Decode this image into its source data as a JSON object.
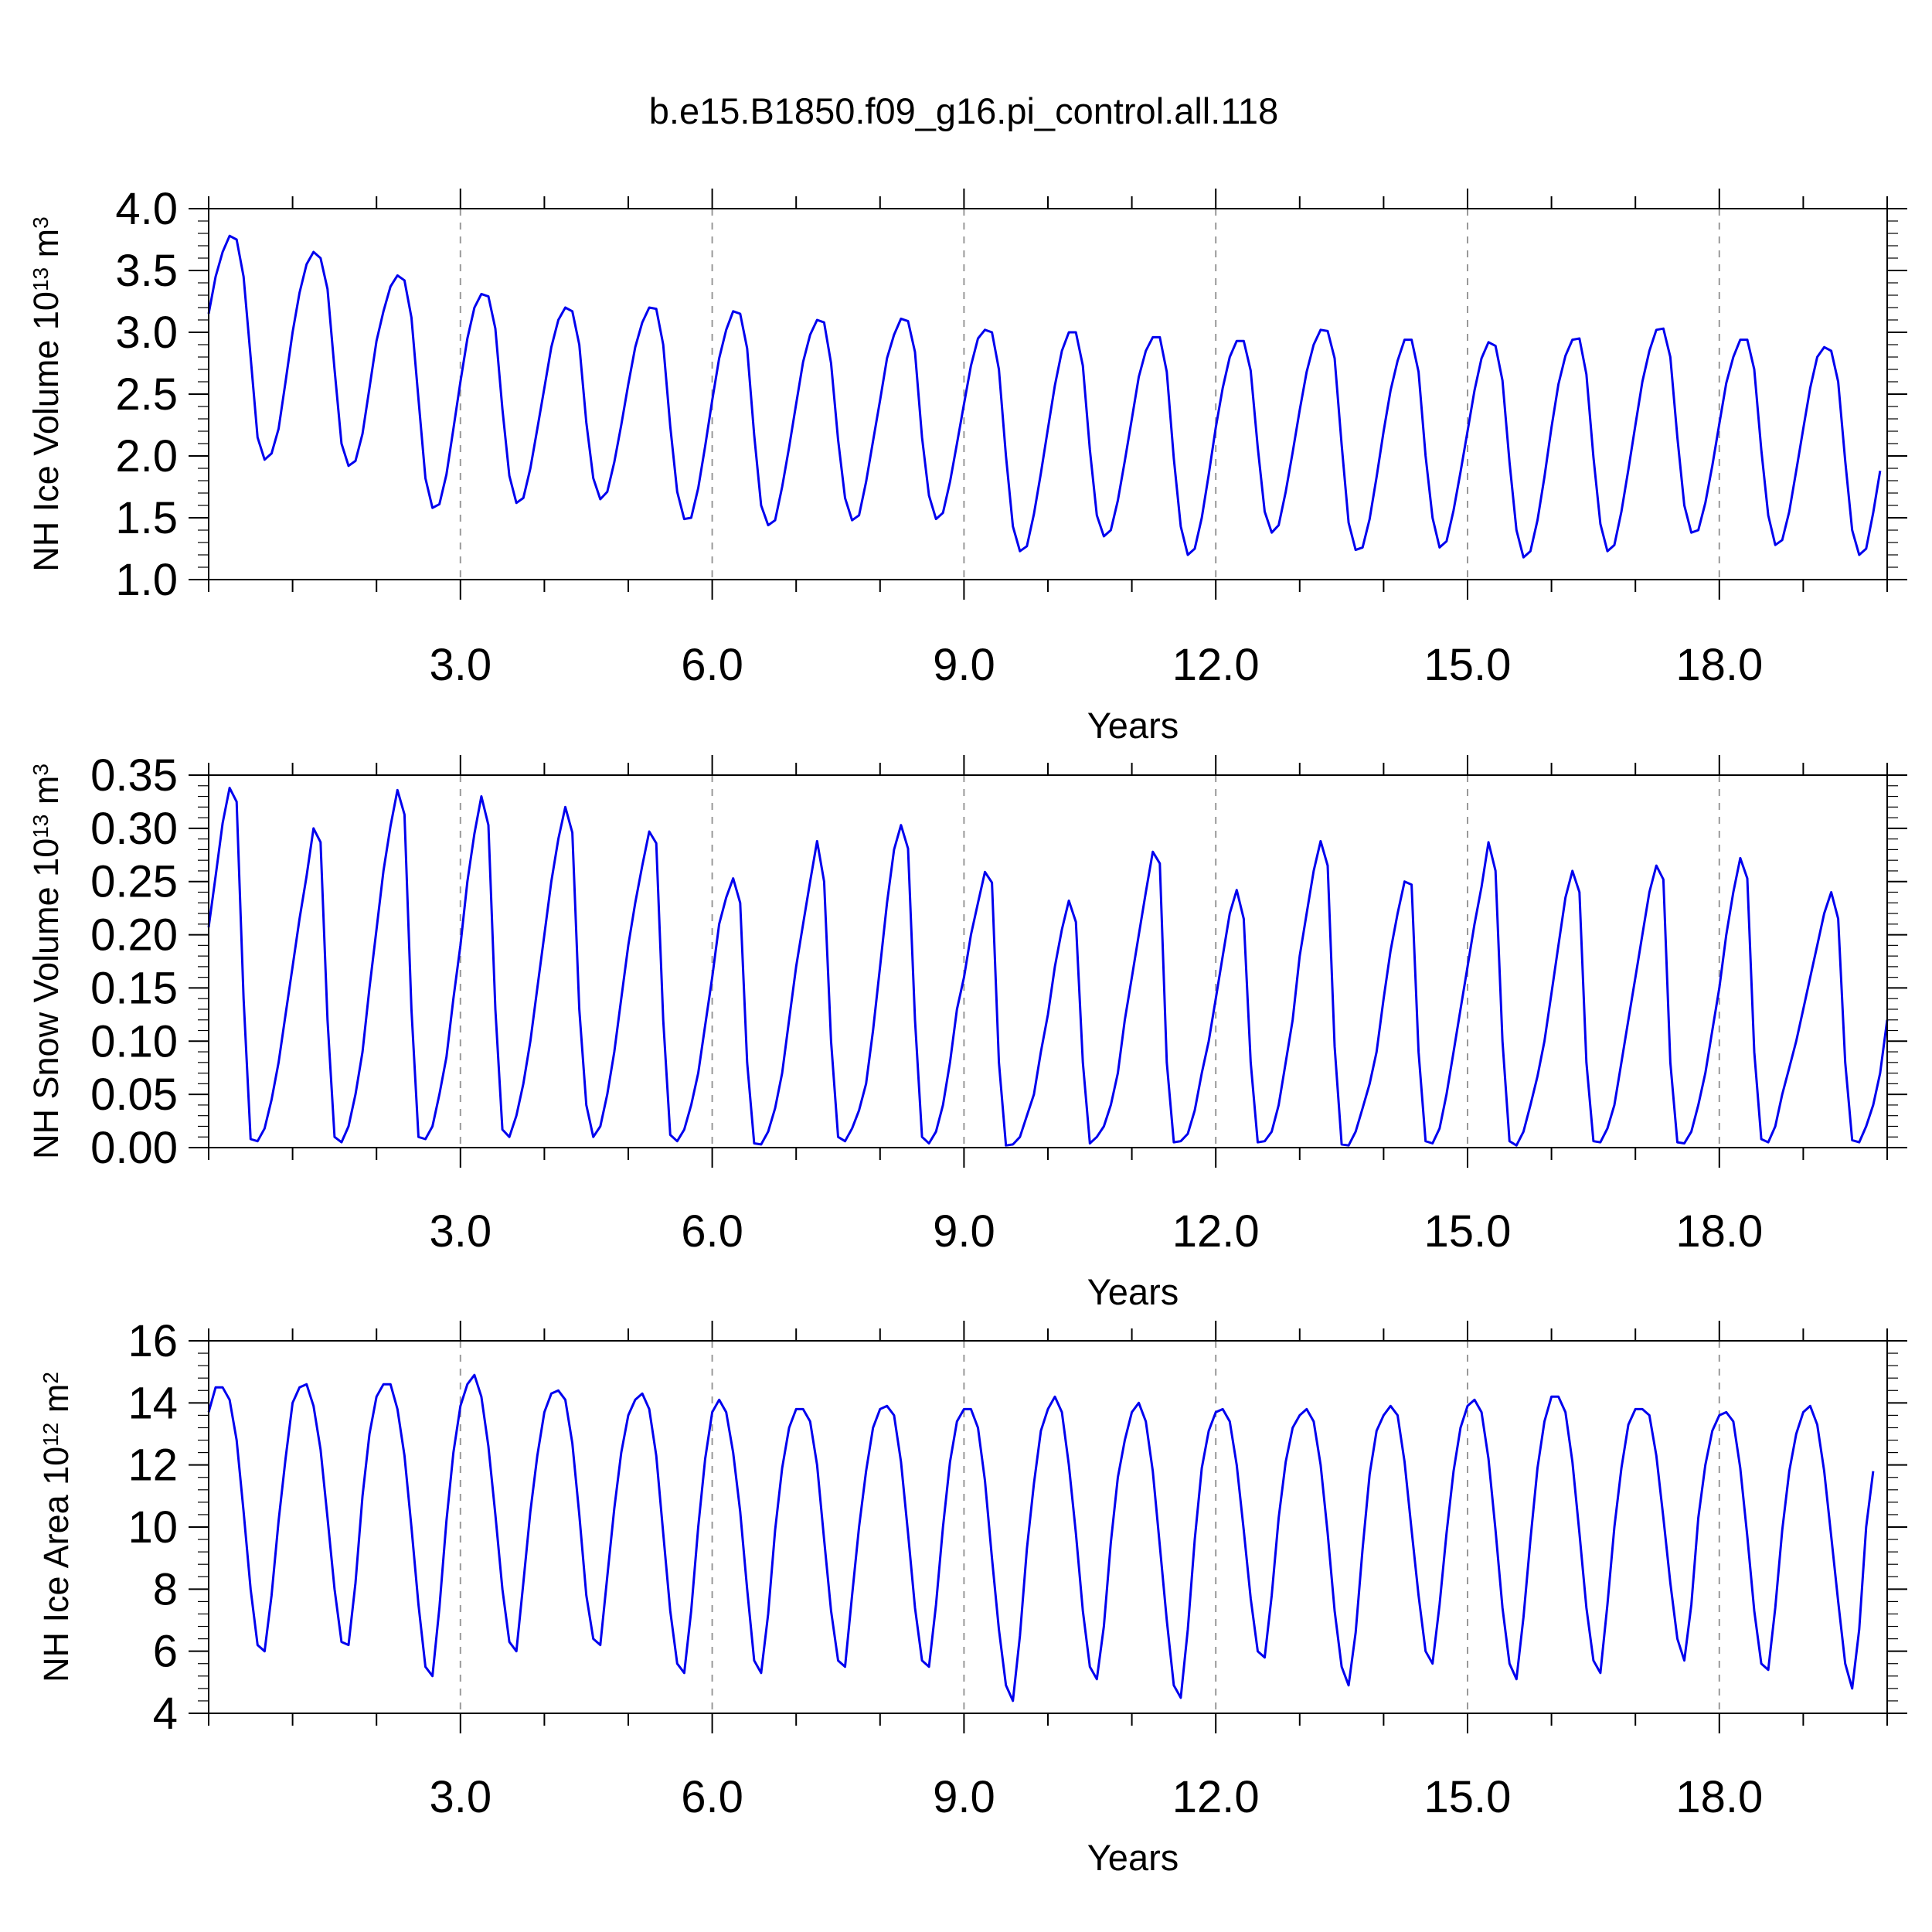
{
  "figure": {
    "title": "b.e15.B1850.f09_g16.pi_control.all.118"
  },
  "chart_data": [
    {
      "type": "line",
      "id": "ice-volume",
      "title": "",
      "xlabel": "Years",
      "ylabel": "NH Ice Volume 10",
      "ylabel_exponent": "13",
      "ylabel_unit": "m",
      "ylabel_unit_exponent": "3",
      "xlim": [
        0.0,
        20.0
      ],
      "ylim": [
        1.0,
        4.0
      ],
      "x_tick_values": [
        3.0,
        6.0,
        9.0,
        12.0,
        15.0,
        18.0
      ],
      "x_tick_labels": [
        "3.0",
        "6.0",
        "9.0",
        "12.0",
        "15.0",
        "18.0"
      ],
      "y_tick_values": [
        1.0,
        1.5,
        2.0,
        2.5,
        3.0,
        3.5,
        4.0
      ],
      "y_tick_labels": [
        "1.0",
        "1.5",
        "2.0",
        "2.5",
        "3.0",
        "3.5",
        "4.0"
      ],
      "grid": "vertical dashed at major x ticks",
      "x": {
        "start": 0.0,
        "step_years": 0.0833333
      },
      "series": [
        {
          "name": "",
          "color": "#0000ee",
          "values": [
            3.15,
            3.45,
            3.65,
            3.78,
            3.75,
            3.45,
            2.8,
            2.15,
            1.97,
            2.02,
            2.22,
            2.6,
            3.0,
            3.32,
            3.55,
            3.65,
            3.6,
            3.35,
            2.7,
            2.1,
            1.92,
            1.96,
            2.18,
            2.55,
            2.93,
            3.17,
            3.37,
            3.46,
            3.42,
            3.12,
            2.46,
            1.82,
            1.58,
            1.61,
            1.85,
            2.22,
            2.6,
            2.95,
            3.2,
            3.31,
            3.29,
            3.03,
            2.38,
            1.84,
            1.62,
            1.66,
            1.9,
            2.22,
            2.55,
            2.88,
            3.1,
            3.2,
            3.17,
            2.9,
            2.27,
            1.82,
            1.65,
            1.71,
            1.95,
            2.25,
            2.58,
            2.88,
            3.08,
            3.2,
            3.19,
            2.9,
            2.24,
            1.71,
            1.49,
            1.5,
            1.74,
            2.08,
            2.45,
            2.79,
            3.02,
            3.17,
            3.15,
            2.87,
            2.17,
            1.6,
            1.44,
            1.48,
            1.75,
            2.07,
            2.42,
            2.76,
            2.98,
            3.1,
            3.08,
            2.75,
            2.13,
            1.66,
            1.48,
            1.52,
            1.79,
            2.12,
            2.45,
            2.79,
            2.98,
            3.11,
            3.09,
            2.84,
            2.15,
            1.68,
            1.49,
            1.54,
            1.79,
            2.1,
            2.42,
            2.73,
            2.95,
            3.02,
            3.0,
            2.7,
            2.0,
            1.43,
            1.23,
            1.27,
            1.53,
            1.86,
            2.22,
            2.57,
            2.85,
            3.0,
            3.0,
            2.73,
            2.05,
            1.52,
            1.35,
            1.4,
            1.64,
            1.96,
            2.3,
            2.64,
            2.85,
            2.96,
            2.96,
            2.68,
            1.98,
            1.43,
            1.2,
            1.25,
            1.5,
            1.85,
            2.23,
            2.55,
            2.8,
            2.93,
            2.93,
            2.69,
            2.07,
            1.55,
            1.38,
            1.44,
            1.71,
            2.03,
            2.37,
            2.68,
            2.9,
            3.02,
            3.01,
            2.79,
            2.09,
            1.46,
            1.24,
            1.26,
            1.49,
            1.83,
            2.2,
            2.53,
            2.77,
            2.94,
            2.94,
            2.68,
            2.0,
            1.5,
            1.26,
            1.31,
            1.56,
            1.87,
            2.2,
            2.53,
            2.79,
            2.92,
            2.89,
            2.61,
            1.95,
            1.4,
            1.18,
            1.23,
            1.48,
            1.83,
            2.23,
            2.58,
            2.81,
            2.94,
            2.95,
            2.66,
            1.99,
            1.45,
            1.23,
            1.28,
            1.55,
            1.89,
            2.25,
            2.6,
            2.85,
            3.02,
            3.03,
            2.8,
            2.15,
            1.6,
            1.38,
            1.4,
            1.62,
            1.92,
            2.26,
            2.59,
            2.8,
            2.94,
            2.94,
            2.7,
            2.05,
            1.52,
            1.28,
            1.32,
            1.55,
            1.88,
            2.22,
            2.55,
            2.8,
            2.88,
            2.85,
            2.6,
            1.96,
            1.4,
            1.2,
            1.25,
            1.54,
            1.88
          ]
        }
      ]
    },
    {
      "type": "line",
      "id": "snow-volume",
      "title": "",
      "xlabel": "Years",
      "ylabel": "NH Snow Volume 10",
      "ylabel_exponent": "13",
      "ylabel_unit": "m",
      "ylabel_unit_exponent": "3",
      "xlim": [
        0.0,
        20.0
      ],
      "ylim": [
        0.0,
        0.35
      ],
      "x_tick_values": [
        3.0,
        6.0,
        9.0,
        12.0,
        15.0,
        18.0
      ],
      "x_tick_labels": [
        "3.0",
        "6.0",
        "9.0",
        "12.0",
        "15.0",
        "18.0"
      ],
      "y_tick_values": [
        0.0,
        0.05,
        0.1,
        0.15,
        0.2,
        0.25,
        0.3,
        0.35
      ],
      "y_tick_labels": [
        "0.00",
        "0.05",
        "0.10",
        "0.15",
        "0.20",
        "0.25",
        "0.30",
        "0.35"
      ],
      "grid": "vertical dashed at major x ticks",
      "x": {
        "start": 0.0,
        "step_years": 0.0833333
      },
      "series": [
        {
          "name": "",
          "color": "#0000ee",
          "values": [
            0.207,
            0.255,
            0.305,
            0.338,
            0.325,
            0.14,
            0.008,
            0.006,
            0.018,
            0.045,
            0.08,
            0.125,
            0.17,
            0.215,
            0.255,
            0.3,
            0.287,
            0.12,
            0.01,
            0.005,
            0.02,
            0.05,
            0.09,
            0.15,
            0.205,
            0.26,
            0.302,
            0.336,
            0.313,
            0.13,
            0.01,
            0.008,
            0.02,
            0.05,
            0.085,
            0.14,
            0.19,
            0.25,
            0.295,
            0.33,
            0.303,
            0.13,
            0.017,
            0.01,
            0.03,
            0.06,
            0.1,
            0.15,
            0.2,
            0.25,
            0.29,
            0.32,
            0.296,
            0.13,
            0.04,
            0.01,
            0.02,
            0.05,
            0.09,
            0.14,
            0.19,
            0.23,
            0.265,
            0.297,
            0.286,
            0.12,
            0.012,
            0.006,
            0.017,
            0.04,
            0.07,
            0.115,
            0.16,
            0.21,
            0.235,
            0.253,
            0.23,
            0.08,
            0.004,
            0.003,
            0.015,
            0.037,
            0.07,
            0.12,
            0.17,
            0.21,
            0.25,
            0.288,
            0.25,
            0.1,
            0.01,
            0.006,
            0.018,
            0.035,
            0.06,
            0.11,
            0.17,
            0.23,
            0.28,
            0.303,
            0.281,
            0.12,
            0.01,
            0.004,
            0.015,
            0.04,
            0.08,
            0.13,
            0.16,
            0.2,
            0.23,
            0.259,
            0.249,
            0.08,
            0.002,
            0.003,
            0.01,
            0.03,
            0.05,
            0.09,
            0.125,
            0.17,
            0.205,
            0.232,
            0.212,
            0.08,
            0.004,
            0.01,
            0.02,
            0.04,
            0.07,
            0.12,
            0.16,
            0.2,
            0.24,
            0.278,
            0.267,
            0.08,
            0.005,
            0.006,
            0.013,
            0.035,
            0.07,
            0.1,
            0.14,
            0.18,
            0.22,
            0.242,
            0.215,
            0.08,
            0.005,
            0.006,
            0.015,
            0.04,
            0.08,
            0.12,
            0.18,
            0.22,
            0.26,
            0.288,
            0.265,
            0.095,
            0.003,
            0.002,
            0.015,
            0.037,
            0.06,
            0.09,
            0.14,
            0.185,
            0.22,
            0.25,
            0.247,
            0.09,
            0.006,
            0.004,
            0.018,
            0.05,
            0.09,
            0.13,
            0.17,
            0.21,
            0.245,
            0.287,
            0.26,
            0.1,
            0.006,
            0.002,
            0.015,
            0.04,
            0.067,
            0.1,
            0.145,
            0.19,
            0.235,
            0.26,
            0.24,
            0.08,
            0.006,
            0.005,
            0.018,
            0.04,
            0.08,
            0.12,
            0.16,
            0.2,
            0.24,
            0.265,
            0.252,
            0.08,
            0.005,
            0.004,
            0.015,
            0.04,
            0.07,
            0.11,
            0.15,
            0.2,
            0.24,
            0.272,
            0.253,
            0.09,
            0.008,
            0.005,
            0.02,
            0.05,
            0.075,
            0.1,
            0.13,
            0.16,
            0.19,
            0.22,
            0.24,
            0.215,
            0.08,
            0.007,
            0.005,
            0.02,
            0.04,
            0.07,
            0.12
          ]
        }
      ]
    },
    {
      "type": "line",
      "id": "ice-area",
      "title": "",
      "xlabel": "Years",
      "ylabel": "NH Ice Area 10",
      "ylabel_exponent": "12",
      "ylabel_unit": "m",
      "ylabel_unit_exponent": "2",
      "xlim": [
        0.0,
        20.0
      ],
      "ylim": [
        4.0,
        16.0
      ],
      "x_tick_values": [
        3.0,
        6.0,
        9.0,
        12.0,
        15.0,
        18.0
      ],
      "x_tick_labels": [
        "3.0",
        "6.0",
        "9.0",
        "12.0",
        "15.0",
        "18.0"
      ],
      "y_tick_values": [
        4,
        6,
        8,
        10,
        12,
        14,
        16
      ],
      "y_tick_labels": [
        "4",
        "6",
        "8",
        "10",
        "12",
        "14",
        "16"
      ],
      "grid": "vertical dashed at major x ticks",
      "x": {
        "start": 0.0,
        "step_years": 0.0833333
      },
      "series": [
        {
          "name": "",
          "color": "#0000ee",
          "values": [
            13.7,
            14.5,
            14.5,
            14.1,
            12.8,
            10.5,
            8.0,
            6.2,
            6.0,
            7.8,
            10.2,
            12.2,
            14.0,
            14.5,
            14.6,
            13.9,
            12.5,
            10.3,
            8.0,
            6.3,
            6.2,
            8.2,
            11.0,
            13.0,
            14.2,
            14.6,
            14.6,
            13.8,
            12.3,
            10.0,
            7.5,
            5.5,
            5.2,
            7.4,
            10.2,
            12.4,
            13.9,
            14.6,
            14.9,
            14.2,
            12.6,
            10.4,
            8.0,
            6.3,
            6.0,
            8.2,
            10.5,
            12.3,
            13.7,
            14.3,
            14.4,
            14.1,
            12.7,
            10.4,
            7.8,
            6.4,
            6.2,
            8.4,
            10.6,
            12.4,
            13.6,
            14.1,
            14.3,
            13.8,
            12.3,
            9.8,
            7.3,
            5.6,
            5.3,
            7.3,
            10.0,
            12.2,
            13.7,
            14.1,
            13.7,
            12.4,
            10.5,
            8.0,
            5.7,
            5.3,
            7.2,
            9.9,
            11.9,
            13.2,
            13.8,
            13.8,
            13.4,
            12.0,
            9.6,
            7.3,
            5.7,
            5.5,
            7.8,
            10.0,
            11.8,
            13.2,
            13.8,
            13.9,
            13.6,
            12.1,
            9.8,
            7.4,
            5.7,
            5.5,
            7.5,
            10.0,
            12.1,
            13.4,
            13.8,
            13.8,
            13.2,
            11.5,
            9.0,
            6.7,
            4.9,
            4.4,
            6.5,
            9.3,
            11.4,
            13.1,
            13.8,
            14.2,
            13.7,
            12.0,
            9.8,
            7.3,
            5.5,
            5.1,
            6.8,
            9.5,
            11.6,
            12.8,
            13.7,
            14.0,
            13.4,
            11.8,
            9.4,
            7.0,
            4.9,
            4.5,
            6.7,
            9.6,
            11.9,
            13.1,
            13.7,
            13.8,
            13.4,
            12.0,
            9.9,
            7.7,
            6.0,
            5.8,
            7.8,
            10.3,
            12.1,
            13.2,
            13.6,
            13.8,
            13.4,
            12.0,
            9.8,
            7.3,
            5.5,
            4.9,
            6.6,
            9.3,
            11.7,
            13.1,
            13.6,
            13.9,
            13.6,
            12.1,
            9.9,
            7.8,
            6.0,
            5.6,
            7.5,
            9.8,
            11.8,
            13.2,
            13.9,
            14.1,
            13.7,
            12.2,
            9.9,
            7.4,
            5.6,
            5.1,
            7.1,
            9.6,
            11.9,
            13.4,
            14.2,
            14.2,
            13.7,
            12.1,
            9.8,
            7.4,
            5.7,
            5.3,
            7.5,
            10.0,
            11.9,
            13.3,
            13.8,
            13.8,
            13.6,
            12.3,
            10.3,
            8.2,
            6.4,
            5.7,
            7.5,
            10.3,
            12.0,
            13.1,
            13.6,
            13.7,
            13.4,
            11.9,
            9.7,
            7.3,
            5.6,
            5.4,
            7.4,
            9.9,
            11.8,
            13.0,
            13.7,
            13.9,
            13.3,
            11.8,
            9.7,
            7.6,
            5.6,
            4.8,
            6.7,
            10.0,
            11.8
          ]
        }
      ]
    }
  ]
}
